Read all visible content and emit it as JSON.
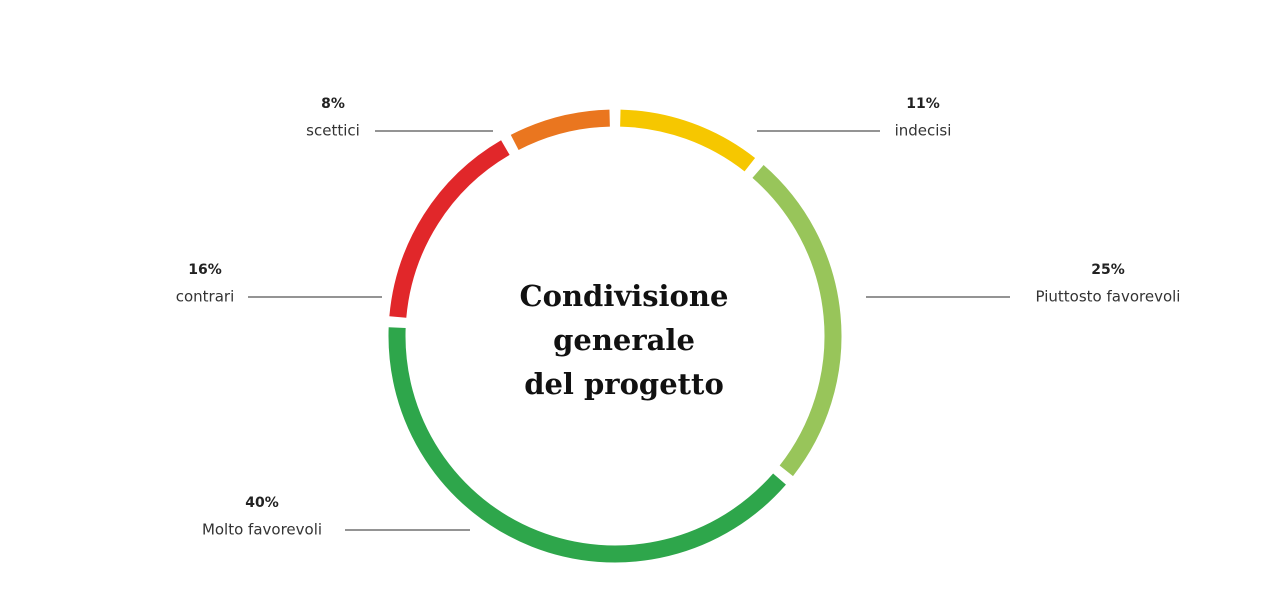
{
  "chart_data": {
    "type": "pie",
    "title": [
      "Condivisione",
      "generale",
      "del progetto"
    ],
    "categories": [
      "indecisi",
      "Piuttosto favorevoli",
      "Molto favorevoli",
      "contrari",
      "scettici"
    ],
    "values": [
      11,
      25,
      40,
      16,
      8
    ],
    "value_labels": [
      "11%",
      "25%",
      "40%",
      "16%",
      "8%"
    ],
    "colors": [
      "#f6c700",
      "#98c55a",
      "#2ea64b",
      "#e1272a",
      "#ea761f"
    ]
  }
}
